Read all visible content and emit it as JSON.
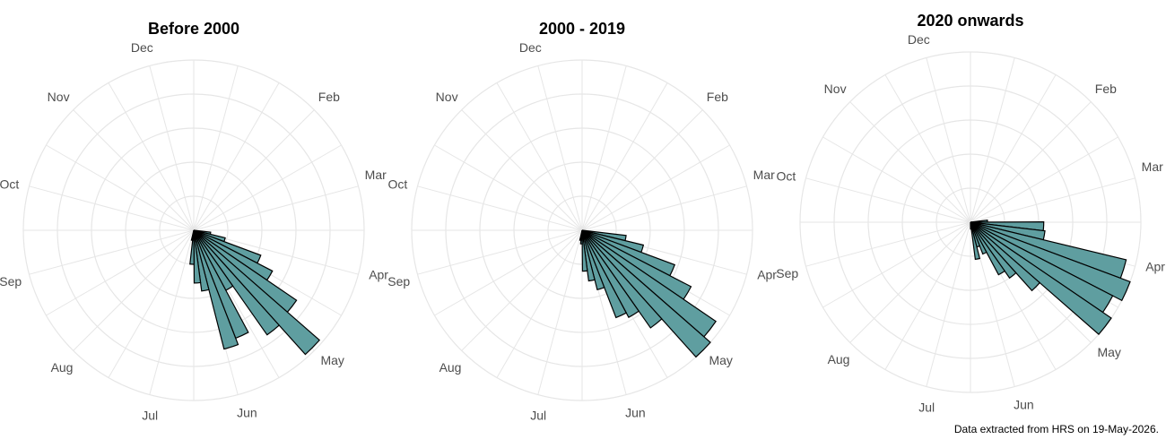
{
  "footnote": "Data extracted from HRS on 19-May-2026.",
  "colors": {
    "bar_fill": "#5f9ea0",
    "bar_stroke": "#000000",
    "grid": "#e6e6e6",
    "label": "#4d4d4d"
  },
  "chart_data": [
    {
      "type": "polar-bar",
      "title": "Before 2000",
      "month_labels": [
        "Dec",
        "Feb",
        "Mar",
        "Apr",
        "May",
        "Jun",
        "Jul",
        "Aug",
        "Sep",
        "Oct",
        "Nov"
      ],
      "angle_unit": "day of year (0 at top, clockwise)",
      "bins": [
        {
          "start": 98,
          "end": 105,
          "value": 0.1
        },
        {
          "start": 105,
          "end": 112,
          "value": 0.19
        },
        {
          "start": 112,
          "end": 119,
          "value": 0.42
        },
        {
          "start": 119,
          "end": 126,
          "value": 0.52
        },
        {
          "start": 126,
          "end": 133,
          "value": 0.73
        },
        {
          "start": 133,
          "end": 140,
          "value": 0.98
        },
        {
          "start": 140,
          "end": 147,
          "value": 0.75
        },
        {
          "start": 147,
          "end": 154,
          "value": 0.4
        },
        {
          "start": 154,
          "end": 161,
          "value": 0.68
        },
        {
          "start": 161,
          "end": 168,
          "value": 0.72
        },
        {
          "start": 168,
          "end": 175,
          "value": 0.36
        },
        {
          "start": 175,
          "end": 182,
          "value": 0.31
        },
        {
          "start": 182,
          "end": 189,
          "value": 0.2
        },
        {
          "start": 189,
          "end": 196,
          "value": 0.06
        }
      ]
    },
    {
      "type": "polar-bar",
      "title": "2000 - 2019",
      "month_labels": [
        "Dec",
        "Feb",
        "Mar",
        "Apr",
        "May",
        "Jun",
        "Jul",
        "Aug",
        "Sep",
        "Oct",
        "Nov"
      ],
      "angle_unit": "day of year (0 at top, clockwise)",
      "bins": [
        {
          "start": 98,
          "end": 105,
          "value": 0.26
        },
        {
          "start": 105,
          "end": 112,
          "value": 0.37
        },
        {
          "start": 112,
          "end": 119,
          "value": 0.58
        },
        {
          "start": 119,
          "end": 126,
          "value": 0.72
        },
        {
          "start": 126,
          "end": 133,
          "value": 0.95
        },
        {
          "start": 133,
          "end": 140,
          "value": 1.0
        },
        {
          "start": 140,
          "end": 147,
          "value": 0.7
        },
        {
          "start": 147,
          "end": 154,
          "value": 0.58
        },
        {
          "start": 154,
          "end": 161,
          "value": 0.55
        },
        {
          "start": 161,
          "end": 168,
          "value": 0.36
        },
        {
          "start": 168,
          "end": 175,
          "value": 0.3
        },
        {
          "start": 175,
          "end": 182,
          "value": 0.24
        },
        {
          "start": 182,
          "end": 189,
          "value": 0.08
        },
        {
          "start": 189,
          "end": 196,
          "value": 0.06
        }
      ]
    },
    {
      "type": "polar-bar",
      "title": "2020 onwards",
      "month_labels": [
        "Dec",
        "Feb",
        "Mar",
        "Apr",
        "May",
        "Jun",
        "Jul",
        "Aug",
        "Sep",
        "Oct",
        "Nov"
      ],
      "angle_unit": "day of year (0 at top, clockwise)",
      "bins": [
        {
          "start": 84,
          "end": 91,
          "value": 0.1
        },
        {
          "start": 91,
          "end": 98,
          "value": 0.43
        },
        {
          "start": 98,
          "end": 105,
          "value": 0.44
        },
        {
          "start": 105,
          "end": 112,
          "value": 0.94
        },
        {
          "start": 112,
          "end": 119,
          "value": 1.0
        },
        {
          "start": 119,
          "end": 126,
          "value": 0.94
        },
        {
          "start": 126,
          "end": 133,
          "value": 1.0
        },
        {
          "start": 133,
          "end": 140,
          "value": 0.54
        },
        {
          "start": 140,
          "end": 147,
          "value": 0.4
        },
        {
          "start": 147,
          "end": 154,
          "value": 0.35
        },
        {
          "start": 154,
          "end": 161,
          "value": 0.2
        },
        {
          "start": 161,
          "end": 168,
          "value": 0.15
        },
        {
          "start": 168,
          "end": 175,
          "value": 0.22
        },
        {
          "start": 175,
          "end": 182,
          "value": 0.04
        }
      ]
    }
  ]
}
